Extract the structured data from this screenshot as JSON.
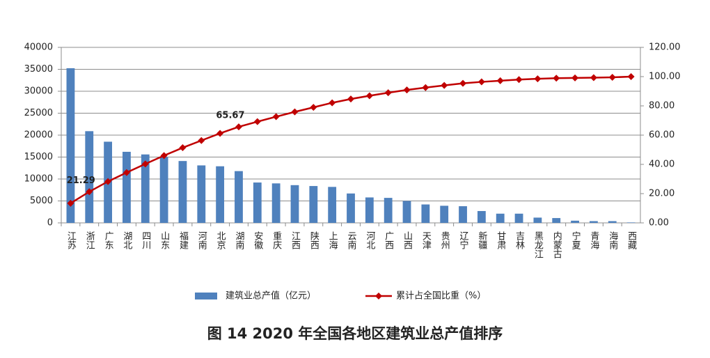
{
  "chart_data": {
    "type": "bar-line",
    "title": "图 14 2020 年全国各地区建筑业总产值排序",
    "categories": [
      "江苏",
      "浙江",
      "广东",
      "湖北",
      "四川",
      "山东",
      "福建",
      "河南",
      "北京",
      "湖南",
      "安徽",
      "重庆",
      "江西",
      "陕西",
      "上海",
      "云南",
      "河北",
      "广西",
      "山西",
      "天津",
      "贵州",
      "辽宁",
      "新疆",
      "甘肃",
      "吉林",
      "黑龙江",
      "内蒙古",
      "宁夏",
      "青海",
      "海南",
      "西藏"
    ],
    "series": [
      {
        "name": "建筑业总产值（亿元）",
        "type": "bar",
        "color": "#4f81bd",
        "values": [
          35250,
          20900,
          18500,
          16200,
          15600,
          15000,
          14100,
          13100,
          12900,
          11800,
          9200,
          9000,
          8600,
          8400,
          8200,
          6700,
          5800,
          5700,
          5000,
          4200,
          3900,
          3800,
          2700,
          2100,
          2100,
          1200,
          1100,
          500,
          400,
          400,
          100
        ]
      },
      {
        "name": "累计占全国比重（%）",
        "type": "line",
        "axis": "y2",
        "color": "#c00000",
        "values": [
          13.4,
          21.29,
          28.3,
          34.4,
          40.3,
          46.0,
          51.4,
          56.3,
          61.2,
          65.67,
          69.2,
          72.6,
          75.9,
          79.0,
          82.1,
          84.7,
          86.9,
          89.0,
          90.9,
          92.5,
          94.0,
          95.4,
          96.4,
          97.2,
          98.0,
          98.5,
          98.9,
          99.1,
          99.3,
          99.5,
          100
        ],
        "value_labels": [
          null,
          "21.29",
          null,
          null,
          null,
          null,
          null,
          null,
          null,
          "65.67",
          null,
          null,
          null,
          null,
          null,
          null,
          null,
          null,
          null,
          null,
          null,
          null,
          null,
          null,
          null,
          null,
          null,
          null,
          null,
          null,
          null
        ]
      }
    ],
    "ylim": [
      0,
      40000
    ],
    "yticks": [
      0,
      5000,
      10000,
      15000,
      20000,
      25000,
      30000,
      35000,
      40000
    ],
    "y2lim": [
      0,
      120
    ],
    "y2ticks": [
      {
        "value": 0,
        "label": "0.00"
      },
      {
        "value": 20,
        "label": "20.00"
      },
      {
        "value": 40,
        "label": "40.00"
      },
      {
        "value": 60,
        "label": "60.00"
      },
      {
        "value": 80,
        "label": "80.00"
      },
      {
        "value": 100,
        "label": "100.00"
      },
      {
        "value": 120,
        "label": "120.00"
      }
    ],
    "grid": true,
    "legend": "bottom"
  }
}
